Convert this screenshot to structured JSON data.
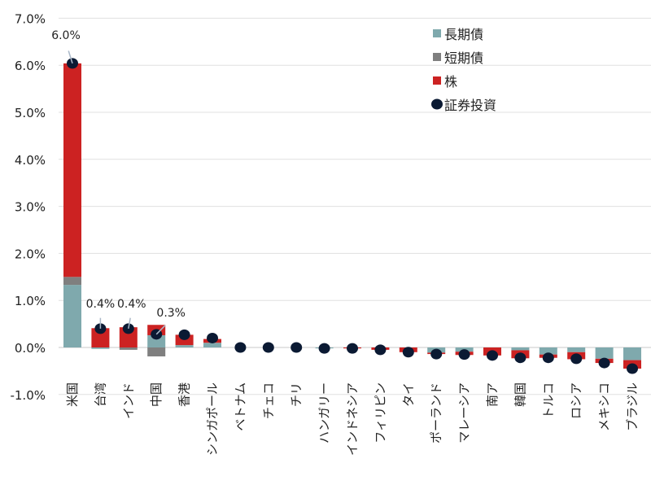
{
  "chart_data": {
    "type": "bar",
    "stacked": true,
    "categories": [
      "米国",
      "台湾",
      "インド",
      "中国",
      "香港",
      "シンガポール",
      "ベトナム",
      "チェコ",
      "チリ",
      "ハンガリー",
      "インドネシア",
      "フィリピン",
      "タイ",
      "ポーランド",
      "マレーシア",
      "南ア",
      "韓国",
      "トルコ",
      "ロシア",
      "メキシコ",
      "ブラジル"
    ],
    "series": [
      {
        "name": "長期債",
        "color": "#7fa9ad",
        "values": [
          1.33,
          -0.03,
          0,
          0.26,
          0.05,
          0.1,
          0,
          0,
          0,
          -0.02,
          0,
          0,
          0,
          -0.11,
          -0.09,
          0,
          -0.06,
          -0.15,
          -0.1,
          -0.24,
          -0.27
        ]
      },
      {
        "name": "短期債",
        "color": "#7f7f7f",
        "values": [
          0.17,
          0,
          -0.05,
          -0.19,
          0,
          0,
          0,
          0,
          0,
          0,
          0,
          0,
          0,
          0,
          0,
          0,
          0,
          0,
          0,
          0,
          0
        ]
      },
      {
        "name": "株",
        "color": "#cc2222",
        "values": [
          4.54,
          0.41,
          0.43,
          0.22,
          0.22,
          0.08,
          0,
          0,
          0,
          0,
          -0.02,
          -0.05,
          -0.1,
          -0.03,
          -0.07,
          -0.17,
          -0.17,
          -0.07,
          -0.15,
          -0.09,
          -0.18
        ]
      }
    ],
    "markers": {
      "name": "証券投資",
      "color": "#0b1a33",
      "values": [
        6.04,
        0.4,
        0.4,
        0.28,
        0.27,
        0.2,
        0.0,
        0.0,
        0.0,
        -0.02,
        -0.02,
        -0.05,
        -0.1,
        -0.14,
        -0.15,
        -0.17,
        -0.22,
        -0.22,
        -0.24,
        -0.33,
        -0.45
      ]
    },
    "data_labels": [
      {
        "category": "米国",
        "text": "6.0%"
      },
      {
        "category": "台湾",
        "text": "0.4%"
      },
      {
        "category": "インド",
        "text": "0.4%"
      },
      {
        "category": "中国",
        "text": "0.3%"
      }
    ],
    "ylim": [
      -1.0,
      7.0
    ],
    "yticks": [
      "-1.0%",
      "0.0%",
      "1.0%",
      "2.0%",
      "3.0%",
      "4.0%",
      "5.0%",
      "6.0%",
      "7.0%"
    ],
    "grid": true,
    "legend_position": "top-right",
    "title": "",
    "xlabel": "",
    "ylabel": ""
  }
}
